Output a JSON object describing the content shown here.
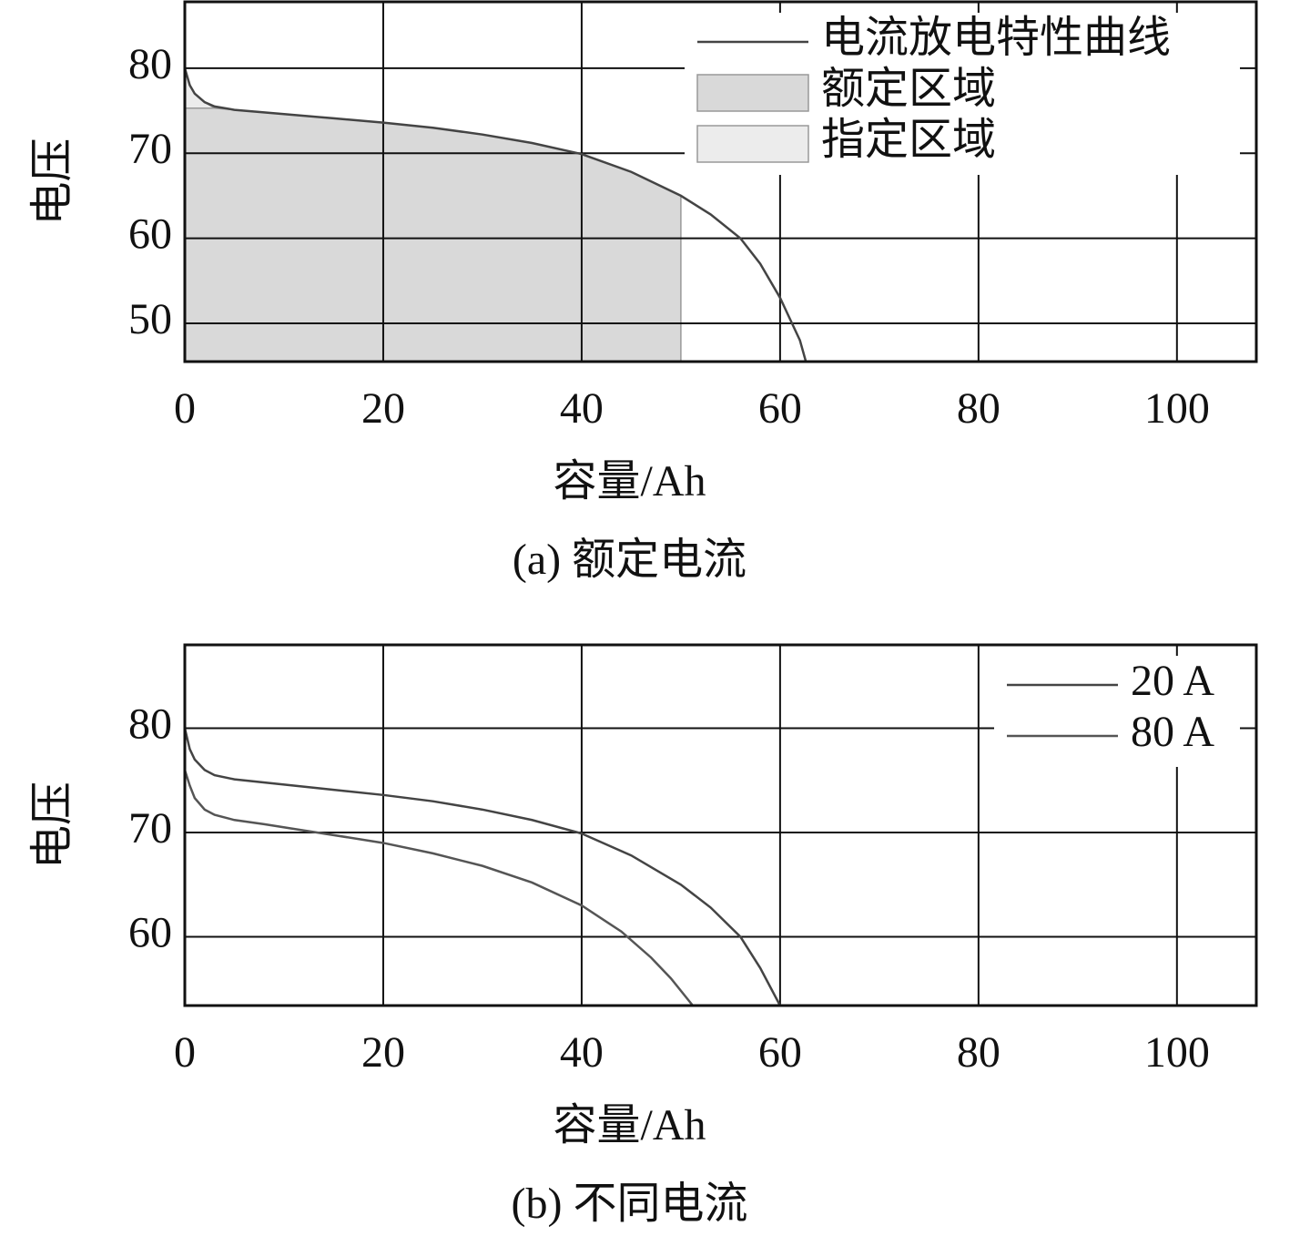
{
  "chart_data": [
    {
      "type": "line",
      "xlabel": "容量/Ah",
      "ylabel": "电压",
      "caption": "(a) 额定电流",
      "xlim": [
        0,
        108
      ],
      "ylim": [
        45.5,
        87.8
      ],
      "xticks": [
        0,
        20,
        40,
        60,
        80,
        100
      ],
      "yticks": [
        50,
        60,
        70,
        80
      ],
      "grid": true,
      "legend": "upper right",
      "series": [
        {
          "name": "电流放电特性曲线",
          "type": "line",
          "color": "#444444",
          "x": [
            0,
            0.5,
            1,
            2,
            3,
            5,
            10,
            15,
            20,
            25,
            30,
            35,
            40,
            45,
            50,
            53,
            56,
            58,
            60,
            62,
            62.6
          ],
          "values": [
            80,
            78,
            77,
            76,
            75.5,
            75.1,
            74.6,
            74.1,
            73.6,
            73,
            72.2,
            71.2,
            69.9,
            67.8,
            65,
            62.8,
            60,
            57,
            53,
            48,
            45.5
          ]
        },
        {
          "name": "额定区域",
          "type": "area",
          "color": "#d9d9d9",
          "x": [
            0,
            3,
            5,
            10,
            15,
            20,
            25,
            30,
            35,
            40,
            45,
            50
          ],
          "values": [
            75.3,
            75.3,
            75.1,
            74.6,
            74.1,
            73.6,
            73,
            72.2,
            71.2,
            69.9,
            67.8,
            65
          ]
        },
        {
          "name": "指定区域",
          "type": "area",
          "color": "#ececec",
          "x": [
            0,
            0.5,
            1,
            2,
            3
          ],
          "values": [
            80,
            78,
            77,
            76,
            75.3
          ]
        }
      ]
    },
    {
      "type": "line",
      "xlabel": "容量/Ah",
      "ylabel": "电压",
      "caption": "(b) 不同电流",
      "xlim": [
        0,
        108
      ],
      "ylim": [
        53.4,
        88
      ],
      "xticks": [
        0,
        20,
        40,
        60,
        80,
        100
      ],
      "yticks": [
        60,
        70,
        80
      ],
      "grid": true,
      "legend": "upper right",
      "series": [
        {
          "name": "20 A",
          "type": "line",
          "color": "#444444",
          "x": [
            0,
            0.5,
            1,
            2,
            3,
            5,
            10,
            15,
            20,
            25,
            30,
            35,
            40,
            45,
            50,
            53,
            56,
            58,
            60
          ],
          "values": [
            80,
            78,
            77,
            76,
            75.5,
            75.1,
            74.6,
            74.1,
            73.6,
            73,
            72.2,
            71.2,
            69.9,
            67.8,
            65,
            62.8,
            60,
            57,
            53.4
          ]
        },
        {
          "name": "80 A",
          "type": "line",
          "color": "#555555",
          "x": [
            0,
            0.5,
            1,
            2,
            3,
            5,
            8,
            12,
            20,
            25,
            30,
            35,
            40,
            44,
            47,
            49,
            51.2
          ],
          "values": [
            76,
            74.5,
            73.3,
            72.2,
            71.7,
            71.2,
            70.8,
            70.2,
            69,
            68,
            66.8,
            65.2,
            63,
            60.5,
            58,
            56,
            53.4
          ]
        }
      ]
    }
  ]
}
